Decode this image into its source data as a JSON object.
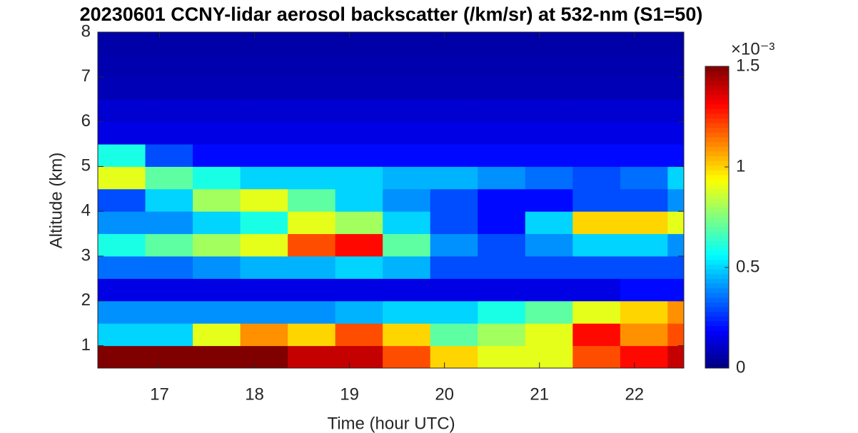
{
  "chart_data": {
    "type": "heatmap",
    "title": "20230601 CCNY-lidar aerosol backscatter (/km/sr) at 532-nm (S1=50)",
    "x_label": "Time (hour UTC)",
    "y_label": "Altitude (km)",
    "colorbar_exponent": "×10⁻³",
    "colormap": "jet",
    "clim": [
      0,
      1.5
    ],
    "colorbar_ticks": [
      0,
      0.5,
      1,
      1.5
    ],
    "xlim": [
      16.35,
      22.52
    ],
    "ylim": [
      0.5,
      8
    ],
    "xticks": [
      17,
      18,
      19,
      20,
      21,
      22
    ],
    "yticks": [
      1,
      2,
      3,
      4,
      5,
      6,
      7,
      8
    ],
    "xbins": [
      16.35,
      16.85,
      17.35,
      17.85,
      18.35,
      18.85,
      19.35,
      19.85,
      20.35,
      20.85,
      21.35,
      21.85,
      22.35,
      22.52
    ],
    "ybins": [
      0.5,
      1,
      1.5,
      2,
      2.5,
      3,
      3.5,
      4,
      4.5,
      5,
      5.5,
      6,
      6.5,
      7,
      7.5,
      8
    ],
    "values": [
      [
        1.5,
        1.5,
        1.5,
        1.5,
        1.4,
        1.4,
        1.2,
        1.0,
        0.9,
        0.9,
        1.2,
        1.3,
        1.4
      ],
      [
        0.5,
        0.5,
        0.9,
        1.1,
        1.0,
        1.2,
        1.0,
        0.7,
        0.8,
        0.9,
        1.3,
        1.1,
        1.2
      ],
      [
        0.4,
        0.4,
        0.4,
        0.4,
        0.4,
        0.45,
        0.5,
        0.5,
        0.6,
        0.7,
        0.9,
        1.0,
        1.1
      ],
      [
        0.15,
        0.15,
        0.15,
        0.15,
        0.15,
        0.15,
        0.15,
        0.15,
        0.15,
        0.15,
        0.15,
        0.2,
        0.2
      ],
      [
        0.35,
        0.35,
        0.4,
        0.45,
        0.45,
        0.5,
        0.45,
        0.3,
        0.3,
        0.3,
        0.3,
        0.3,
        0.3
      ],
      [
        0.6,
        0.7,
        0.8,
        0.9,
        1.2,
        1.3,
        0.7,
        0.4,
        0.3,
        0.4,
        0.5,
        0.5,
        0.4
      ],
      [
        0.4,
        0.4,
        0.5,
        0.6,
        0.9,
        0.8,
        0.5,
        0.3,
        0.2,
        0.5,
        1.0,
        1.0,
        0.9
      ],
      [
        0.3,
        0.5,
        0.8,
        0.9,
        0.7,
        0.5,
        0.4,
        0.3,
        0.2,
        0.2,
        0.3,
        0.3,
        0.4
      ],
      [
        0.9,
        0.7,
        0.6,
        0.5,
        0.5,
        0.5,
        0.45,
        0.45,
        0.4,
        0.35,
        0.3,
        0.35,
        0.5
      ],
      [
        0.6,
        0.3,
        0.2,
        0.2,
        0.2,
        0.2,
        0.2,
        0.2,
        0.2,
        0.2,
        0.2,
        0.2,
        0.2
      ],
      [
        0.15,
        0.15,
        0.15,
        0.15,
        0.15,
        0.15,
        0.15,
        0.15,
        0.15,
        0.15,
        0.15,
        0.15,
        0.15
      ],
      [
        0.12,
        0.12,
        0.12,
        0.12,
        0.12,
        0.12,
        0.12,
        0.12,
        0.12,
        0.12,
        0.12,
        0.12,
        0.12
      ],
      [
        0.08,
        0.08,
        0.08,
        0.08,
        0.08,
        0.08,
        0.08,
        0.08,
        0.08,
        0.08,
        0.08,
        0.08,
        0.08
      ],
      [
        0.07,
        0.07,
        0.07,
        0.07,
        0.07,
        0.07,
        0.07,
        0.07,
        0.07,
        0.07,
        0.07,
        0.07,
        0.07
      ],
      [
        0.06,
        0.06,
        0.06,
        0.06,
        0.06,
        0.06,
        0.06,
        0.06,
        0.06,
        0.06,
        0.06,
        0.06,
        0.06
      ]
    ]
  }
}
